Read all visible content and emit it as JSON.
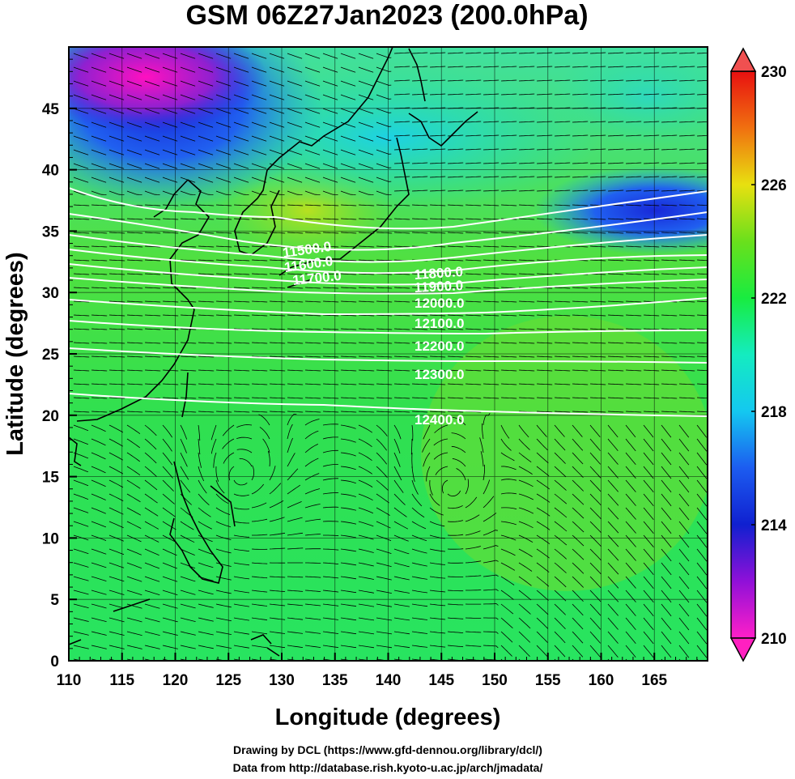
{
  "title": "GSM 06Z27Jan2023 (200.0hPa)",
  "xlabel": "Longitude (degrees)",
  "ylabel": "Latitude  (degrees)",
  "x_ticks": [
    "110",
    "115",
    "120",
    "125",
    "130",
    "135",
    "140",
    "145",
    "150",
    "155",
    "160",
    "165"
  ],
  "y_ticks": [
    "0",
    "5",
    "10",
    "15",
    "20",
    "25",
    "30",
    "35",
    "40",
    "45"
  ],
  "colorbar": {
    "ticks": [
      "210",
      "214",
      "218",
      "222",
      "226",
      "230"
    ],
    "min": 210,
    "max": 230
  },
  "credits": {
    "line1": "Drawing by DCL (https://www.gfd-dennou.org/library/dcl/)",
    "line2": "Data from http://database.rish.kyoto-u.ac.jp/arch/jmadata/"
  },
  "chart_data": {
    "type": "heatmap",
    "title": "GSM 06Z27Jan2023 (200.0hPa)",
    "xlabel": "Longitude (degrees)",
    "ylabel": "Latitude  (degrees)",
    "xlim": [
      110,
      170
    ],
    "ylim": [
      0,
      50
    ],
    "x_ticks": [
      110,
      115,
      120,
      125,
      130,
      135,
      140,
      145,
      150,
      155,
      160,
      165
    ],
    "y_ticks": [
      0,
      5,
      10,
      15,
      20,
      25,
      30,
      35,
      40,
      45
    ],
    "colorbar_range": [
      210,
      230
    ],
    "colorbar_ticks": [
      210,
      214,
      218,
      222,
      226,
      230
    ],
    "contour_labels": [
      "11500.0",
      "11600.0",
      "11700.0",
      "11800.0",
      "11900.0",
      "12000.0",
      "12100.0",
      "12200.0",
      "12300.0",
      "12400.0"
    ],
    "streamlines": true,
    "coastlines": true
  }
}
